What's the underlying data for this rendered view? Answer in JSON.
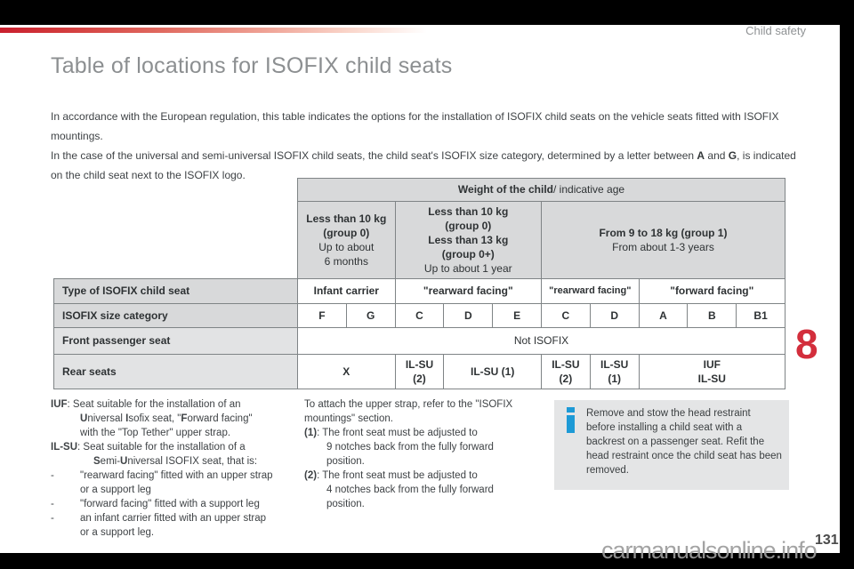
{
  "chrome": {
    "section_label": "Child safety",
    "chapter_number": "8",
    "page_number": "131",
    "watermark_text": "carmanualsonline.info"
  },
  "title": "Table of locations for ISOFIX child seats",
  "intro": {
    "para1": "In accordance with the European regulation, this table indicates the options for the installation of ISOFIX child seats on the vehicle seats fitted with ISOFIX mountings.",
    "para2": [
      {
        "t": "In the case of the universal and semi-universal ISOFIX child seats, the child seat's ISOFIX size category, determined by a letter between ",
        "b": false
      },
      {
        "t": "A",
        "b": true
      },
      {
        "t": " and ",
        "b": false
      },
      {
        "t": "G",
        "b": true
      },
      {
        "t": ", is indicated on the child seat next to the ISOFIX logo.",
        "b": false
      }
    ]
  },
  "table": {
    "weight_header": [
      {
        "t": "Weight of the child",
        "b": true
      },
      {
        "t": " / indicative age",
        "b": false
      }
    ],
    "groups": {
      "g0": {
        "bold1": "Less than 10 kg",
        "bold2": "(group 0)",
        "n1": "Up to about",
        "n2": "6 months"
      },
      "g0plus": {
        "bold1": "Less than 10 kg",
        "bold2": "(group 0)",
        "bold3": "Less than 13 kg",
        "bold4": "(group 0+)",
        "n1": "Up to about 1 year"
      },
      "g1": {
        "bold1": "From 9 to 18 kg (group 1)",
        "n1": "From about 1-3 years"
      }
    },
    "row_type": {
      "header": "Type of ISOFIX child seat",
      "c1": "Infant carrier",
      "c2": "\"rearward facing\"",
      "c3": "\"rearward facing\"",
      "c4": "\"forward facing\""
    },
    "row_size": {
      "header": "ISOFIX size category",
      "cells": [
        "F",
        "G",
        "C",
        "D",
        "E",
        "C",
        "D",
        "A",
        "B",
        "B1"
      ]
    },
    "row_front": {
      "header": "Front passenger seat",
      "value": "Not ISOFIX"
    },
    "row_rear": {
      "header": "Rear seats",
      "c1": "X",
      "c2a": "IL-SU",
      "c2b": "(2)",
      "c3": "IL-SU (1)",
      "c4a": "IL-SU",
      "c4b": "(2)",
      "c5a": "IL-SU",
      "c5b": "(1)",
      "c6a": "IUF",
      "c6b": "IL-SU"
    }
  },
  "legend": {
    "l1": [
      {
        "t": "IUF",
        "b": true
      },
      {
        "t": ": Seat suitable for the installation of an",
        "b": false
      }
    ],
    "l2": [
      {
        "t": "U",
        "b": true
      },
      {
        "t": "niversal ",
        "b": false
      },
      {
        "t": "I",
        "b": true
      },
      {
        "t": "sofix seat, \"",
        "b": false
      },
      {
        "t": "F",
        "b": true
      },
      {
        "t": "orward facing\"",
        "b": false
      }
    ],
    "l3": "with the \"Top Tether\" upper strap.",
    "l4": [
      {
        "t": "IL-SU",
        "b": true
      },
      {
        "t": ": Seat suitable for the installation of a",
        "b": false
      }
    ],
    "l5": [
      {
        "t": "S",
        "b": true
      },
      {
        "t": "emi-",
        "b": false
      },
      {
        "t": "U",
        "b": true
      },
      {
        "t": "niversal ISOFIX seat, that is:",
        "b": false
      }
    ],
    "dash": "-",
    "l6": "\"rearward facing\" fitted with an upper strap",
    "l7": "or a support leg",
    "l8": "\"forward facing\" fitted with a support leg",
    "l9": "an infant carrier fitted with an upper strap",
    "l10": "or a support leg."
  },
  "instructions": {
    "l1": "To attach the upper strap, refer to the \"ISOFIX",
    "l2": "mountings\" section.",
    "l3": [
      {
        "t": "(1)",
        "b": true
      },
      {
        "t": ": The front seat must be adjusted to",
        "b": false
      }
    ],
    "l4": "9 notches back from the fully forward",
    "l5": "position.",
    "l6": [
      {
        "t": "(2)",
        "b": true
      },
      {
        "t": ": The front seat must be adjusted to",
        "b": false
      }
    ],
    "l7": "4 notches back from the fully forward",
    "l8": "position."
  },
  "note": {
    "icon": "info-icon",
    "text": "Remove and stow the head restraint before installing a child seat with a backrest on a passenger seat. Refit the head restraint once the child seat has been removed."
  },
  "colors": {
    "accent_red": "#d32e3c",
    "info_blue": "#1d9ad6",
    "table_header_bg": "#d8d9da",
    "table_leftcol_bg": "#e2e3e4",
    "note_bg": "#e4e5e6"
  }
}
